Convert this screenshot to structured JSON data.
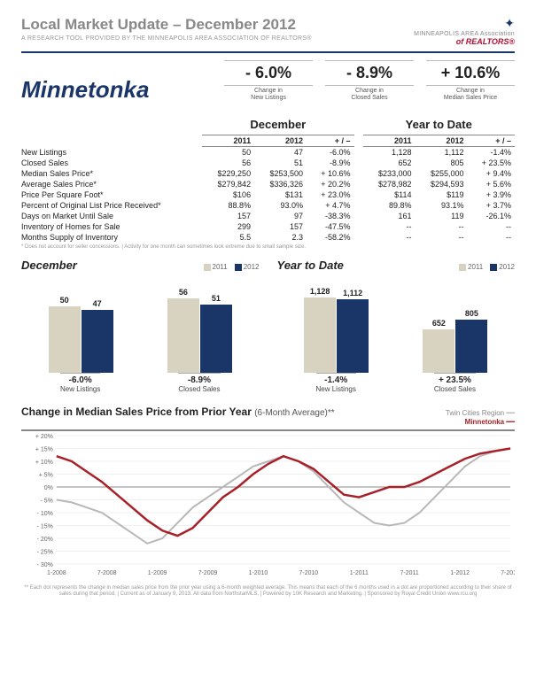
{
  "header": {
    "title": "Local Market Update – December 2012",
    "subtitle": "A RESEARCH TOOL PROVIDED BY THE MINNEAPOLIS AREA ASSOCIATION OF REALTORS®",
    "logo_line1": "MINNEAPOLIS AREA Association",
    "logo_line2": "of REALTORS®"
  },
  "region": "Minnetonka",
  "top_stats": [
    {
      "val": "- 6.0%",
      "lbl1": "Change in",
      "lbl2": "New Listings"
    },
    {
      "val": "- 8.9%",
      "lbl1": "Change in",
      "lbl2": "Closed Sales"
    },
    {
      "val": "+ 10.6%",
      "lbl1": "Change in",
      "lbl2": "Median Sales Price"
    }
  ],
  "table": {
    "group_headers": [
      "December",
      "Year to Date"
    ],
    "sub_headers": [
      "2011",
      "2012",
      "+ / –",
      "2011",
      "2012",
      "+ / –"
    ],
    "rows": [
      {
        "lbl": "New Listings",
        "c": [
          "50",
          "47",
          "-6.0%",
          "1,128",
          "1,112",
          "-1.4%"
        ]
      },
      {
        "lbl": "Closed Sales",
        "c": [
          "56",
          "51",
          "-8.9%",
          "652",
          "805",
          "+ 23.5%"
        ]
      },
      {
        "lbl": "Median Sales Price*",
        "c": [
          "$229,250",
          "$253,500",
          "+ 10.6%",
          "$233,000",
          "$255,000",
          "+ 9.4%"
        ]
      },
      {
        "lbl": "Average Sales Price*",
        "c": [
          "$279,842",
          "$336,326",
          "+ 20.2%",
          "$278,982",
          "$294,593",
          "+ 5.6%"
        ]
      },
      {
        "lbl": "Price Per Square Foot*",
        "c": [
          "$106",
          "$131",
          "+ 23.0%",
          "$114",
          "$119",
          "+ 3.9%"
        ]
      },
      {
        "lbl": "Percent of Original List Price Received*",
        "c": [
          "88.8%",
          "93.0%",
          "+ 4.7%",
          "89.8%",
          "93.1%",
          "+ 3.7%"
        ]
      },
      {
        "lbl": "Days on Market Until Sale",
        "c": [
          "157",
          "97",
          "-38.3%",
          "161",
          "119",
          "-26.1%"
        ]
      },
      {
        "lbl": "Inventory of Homes for Sale",
        "c": [
          "299",
          "157",
          "-47.5%",
          "--",
          "--",
          "--"
        ]
      },
      {
        "lbl": "Months Supply of Inventory",
        "c": [
          "5.5",
          "2.3",
          "-58.2%",
          "--",
          "--",
          "--"
        ]
      }
    ],
    "footnote": "* Does not account for seller concessions.  |  Activity for one month can sometimes look extreme due to small sample size."
  },
  "colors": {
    "c2011": "#d8d3c0",
    "c2012": "#1a3668",
    "brand": "#1a3668",
    "red": "#a82028",
    "grid": "#e0e0e0",
    "grey_line": "#b8b8b8"
  },
  "bar_charts": [
    {
      "title": "December",
      "legend": [
        "2011",
        "2012"
      ],
      "groups": [
        {
          "v": [
            50,
            47
          ],
          "max": 60,
          "pct": "-6.0%",
          "name": "New Listings"
        },
        {
          "v": [
            56,
            51
          ],
          "max": 60,
          "pct": "-8.9%",
          "name": "Closed Sales"
        }
      ]
    },
    {
      "title": "Year to Date",
      "legend": [
        "2011",
        "2012"
      ],
      "groups": [
        {
          "v": [
            1128,
            1112
          ],
          "max": 1200,
          "pct": "-1.4%",
          "name": "New Listings"
        },
        {
          "v": [
            652,
            805
          ],
          "max": 1200,
          "pct": "+ 23.5%",
          "name": "Closed Sales"
        }
      ]
    }
  ],
  "line_chart": {
    "title": "Change in Median Sales Price from Prior Year",
    "suffix": "(6-Month Average)**",
    "legend": {
      "tc": "Twin Cities Region",
      "mn": "Minnetonka"
    },
    "y_ticks": [
      "+ 20%",
      "+ 15%",
      "+ 10%",
      "+ 5%",
      "0%",
      "- 5%",
      "- 10%",
      "- 15%",
      "- 20%",
      "- 25%",
      "- 30%"
    ],
    "y_min": -30,
    "y_max": 20,
    "x_labels": [
      "1-2008",
      "7-2008",
      "1-2009",
      "7-2009",
      "1-2010",
      "7-2010",
      "1-2011",
      "7-2011",
      "1-2012",
      "7-2012"
    ],
    "series": {
      "tc": [
        -5,
        -6,
        -8,
        -10,
        -14,
        -18,
        -22,
        -20,
        -14,
        -8,
        -4,
        0,
        4,
        8,
        10,
        12,
        10,
        6,
        0,
        -6,
        -10,
        -14,
        -15,
        -14,
        -10,
        -4,
        2,
        8,
        12,
        14,
        15
      ],
      "mn": [
        12,
        10,
        6,
        2,
        -3,
        -8,
        -13,
        -17,
        -19,
        -16,
        -10,
        -4,
        0,
        5,
        9,
        12,
        10,
        7,
        2,
        -3,
        -4,
        -2,
        0,
        0,
        2,
        5,
        8,
        11,
        13,
        14,
        15
      ]
    },
    "footnote": "** Each dot represents the change in median sales price from the prior year using a 6-month weighted average. This means that each of the 6 months used in a dot are proportioned according to their share of sales during that period.  |  Current as of January 9, 2013. All data from NorthstarMLS.  |  Powered by 10K Research and Marketing.  |  Sponsored by Royal Credit Union  www.rcu.org"
  }
}
